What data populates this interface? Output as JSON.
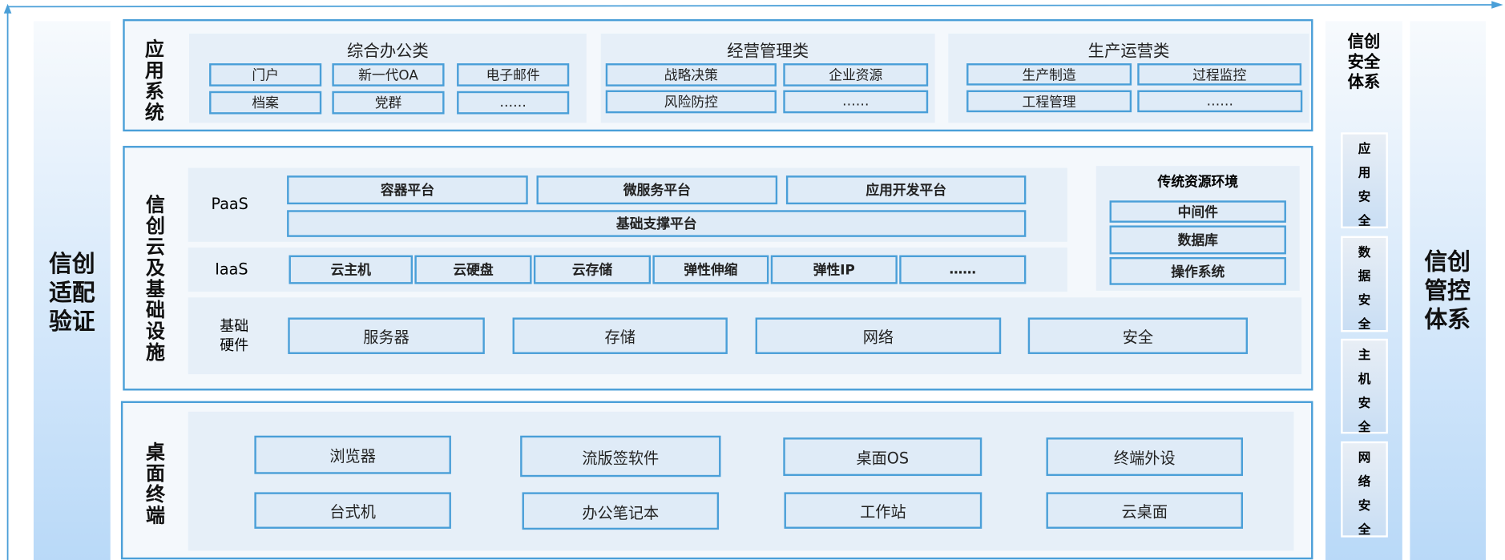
{
  "left_column": {
    "title": "信创适配验证"
  },
  "right_column": {
    "title": "信创管控体系"
  },
  "security_column": {
    "title": "信创安全体系",
    "items": [
      "应用安全",
      "数据安全",
      "主机安全",
      "网络安全"
    ]
  },
  "app_system": {
    "label": "应用系统",
    "groups": [
      {
        "title": "综合办公类",
        "items": [
          "门户",
          "新一代OA",
          "电子邮件",
          "档案",
          "党群",
          "……"
        ]
      },
      {
        "title": "经营管理类",
        "items": [
          "战略决策",
          "企业资源",
          "风险防控",
          "……"
        ]
      },
      {
        "title": "生产运营类",
        "items": [
          "生产制造",
          "过程监控",
          "工程管理",
          "……"
        ]
      }
    ]
  },
  "cloud": {
    "label": "信创云及基础设施",
    "paas": {
      "label": "PaaS",
      "items": [
        "容器平台",
        "微服务平台",
        "应用开发平台",
        "基础支撑平台"
      ]
    },
    "iaas": {
      "label": "IaaS",
      "items": [
        "云主机",
        "云硬盘",
        "云存储",
        "弹性伸缩",
        "弹性IP",
        "……"
      ]
    },
    "hardware": {
      "label": "基础硬件",
      "items": [
        "服务器",
        "存储",
        "网络",
        "安全"
      ]
    },
    "traditional": {
      "title": "传统资源环境",
      "items": [
        "中间件",
        "数据库",
        "操作系统"
      ]
    }
  },
  "desktop": {
    "label": "桌面终端",
    "items": [
      "浏览器",
      "流版签软件",
      "桌面OS",
      "终端外设",
      "台式机",
      "办公笔记本",
      "工作站",
      "云桌面"
    ]
  },
  "colors": {
    "border": "#4a9fd8",
    "box": "#dfebf7",
    "panel": "#e6eff8"
  }
}
